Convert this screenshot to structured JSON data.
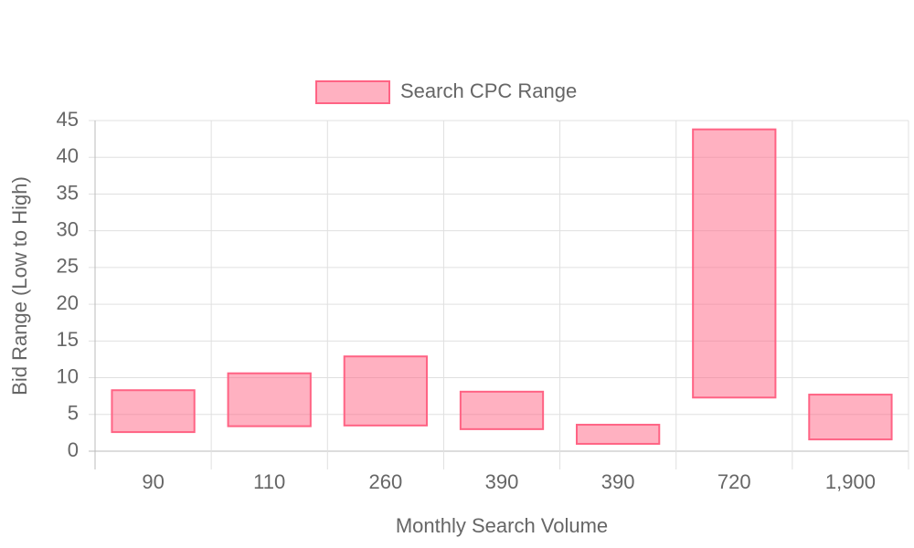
{
  "chart_data": {
    "type": "floating-bar",
    "x_label": "Monthly Search Volume",
    "y_label": "Bid Range (Low to High)",
    "categories": [
      "90",
      "110",
      "260",
      "390",
      "390",
      "720",
      "1,900"
    ],
    "series": [
      {
        "name": "Search CPC Range",
        "color": "rgba(255,99,132,0.5)",
        "border_color": "rgb(255,99,132)",
        "values": [
          [
            2.6,
            8.3
          ],
          [
            3.4,
            10.6
          ],
          [
            3.5,
            12.9
          ],
          [
            3.0,
            8.1
          ],
          [
            1.0,
            3.6
          ],
          [
            7.3,
            43.8
          ],
          [
            1.6,
            7.7
          ]
        ]
      }
    ],
    "ylim": [
      0,
      45
    ],
    "yticks": [
      0,
      5,
      10,
      15,
      20,
      25,
      30,
      35,
      40,
      45
    ],
    "grid": true,
    "legend": "top"
  }
}
